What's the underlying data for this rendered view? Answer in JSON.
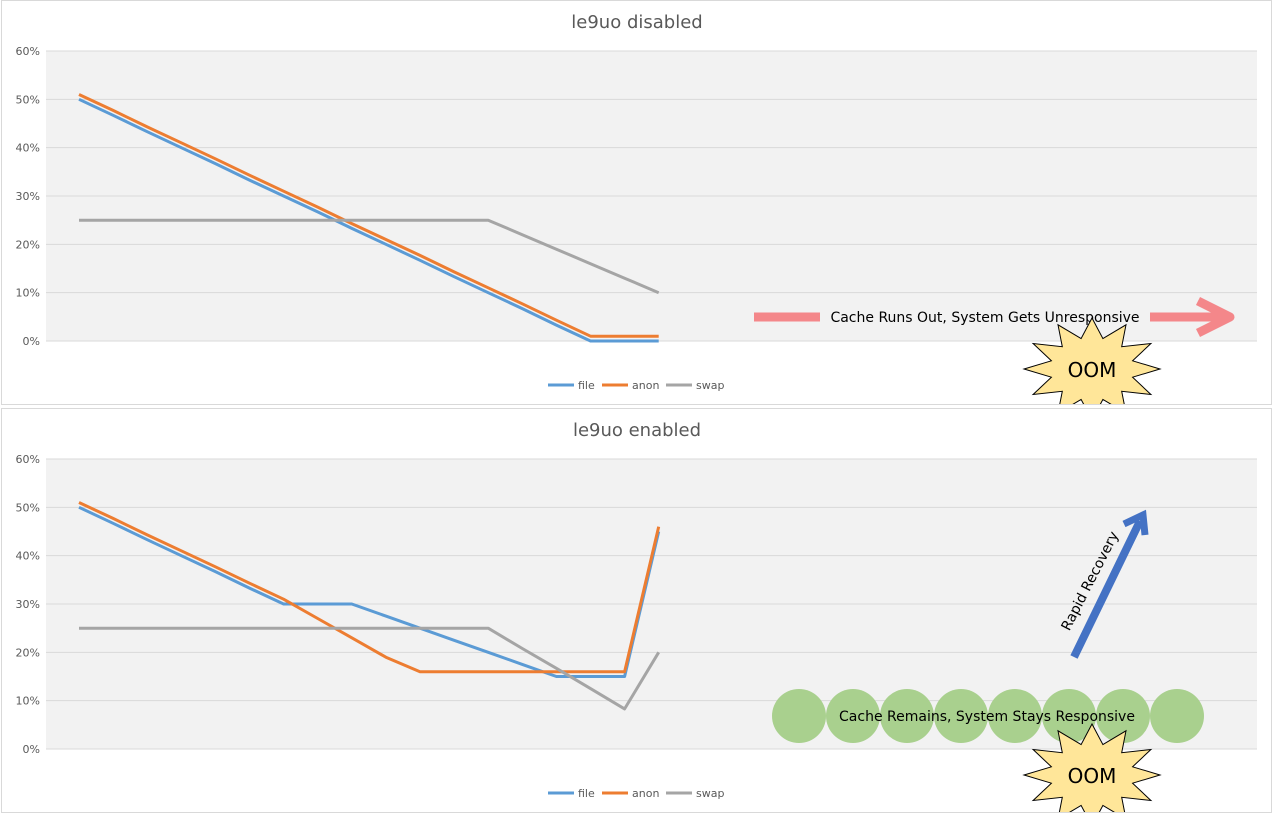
{
  "colors": {
    "file": "#5b9bd5",
    "anon": "#ed7d31",
    "swap": "#a5a5a5",
    "plot_bg": "#f2f2f2",
    "grid": "#d9d9d9",
    "red_arrow": "#f4878a",
    "blue_arrow": "#4472c4",
    "circle": "#a9d08e",
    "burst": "#ffe699"
  },
  "chart_data": [
    {
      "type": "line",
      "title": "le9uo disabled",
      "ylim": [
        0,
        60
      ],
      "y_ticks": [
        "60%",
        "50%",
        "40%",
        "30%",
        "20%",
        "10%",
        "0%"
      ],
      "x": [
        0,
        1,
        2,
        3,
        4,
        5,
        6,
        7,
        8,
        9,
        10,
        11,
        12,
        13,
        14,
        15,
        16,
        17
      ],
      "series": [
        {
          "name": "file",
          "values": [
            50,
            46.7,
            43.3,
            40,
            36.7,
            33.3,
            30,
            26.7,
            23.3,
            20,
            16.7,
            13.3,
            10,
            6.7,
            3.3,
            0,
            0,
            0
          ],
          "key": "file"
        },
        {
          "name": "anon",
          "values": [
            51,
            47.7,
            44.3,
            41,
            37.7,
            34.3,
            31,
            27.7,
            24.3,
            21,
            17.7,
            14.3,
            11,
            7.7,
            4.3,
            1,
            1,
            1
          ],
          "key": "anon"
        },
        {
          "name": "swap",
          "values": [
            25,
            25,
            25,
            25,
            25,
            25,
            25,
            25,
            25,
            25,
            25,
            25,
            25,
            22,
            19,
            16,
            13,
            10
          ],
          "key": "swap"
        }
      ],
      "annotations": {
        "banner": "Cache Runs Out, System Gets Unresponsive",
        "burst": "OOM"
      },
      "legend": [
        "file",
        "anon",
        "swap"
      ],
      "grid": true,
      "legend_position": "bottom"
    },
    {
      "type": "line",
      "title": "le9uo enabled",
      "ylim": [
        0,
        60
      ],
      "y_ticks": [
        "60%",
        "50%",
        "40%",
        "30%",
        "20%",
        "10%",
        "0%"
      ],
      "x": [
        0,
        1,
        2,
        3,
        4,
        5,
        6,
        7,
        8,
        9,
        10,
        11,
        12,
        13,
        14,
        15,
        16,
        17
      ],
      "series": [
        {
          "name": "file",
          "values": [
            50,
            46.7,
            43.3,
            40,
            36.7,
            33.3,
            30,
            30,
            30,
            27.5,
            25,
            22.5,
            20,
            17.5,
            15,
            15,
            15,
            45
          ],
          "key": "file"
        },
        {
          "name": "anon",
          "values": [
            51,
            47.7,
            44.3,
            41,
            37.7,
            34.3,
            31,
            27,
            23,
            19,
            16,
            16,
            16,
            16,
            16,
            16,
            16,
            46
          ],
          "key": "anon"
        },
        {
          "name": "swap",
          "values": [
            25,
            25,
            25,
            25,
            25,
            25,
            25,
            25,
            25,
            25,
            25,
            25,
            25,
            20.8,
            16.7,
            12.5,
            8.3,
            20
          ],
          "key": "swap"
        }
      ],
      "annotations": {
        "banner": "Cache Remains, System Stays Responsive",
        "recovery": "Rapid Recovery",
        "burst": "OOM"
      },
      "legend": [
        "file",
        "anon",
        "swap"
      ],
      "grid": true,
      "legend_position": "bottom"
    }
  ]
}
